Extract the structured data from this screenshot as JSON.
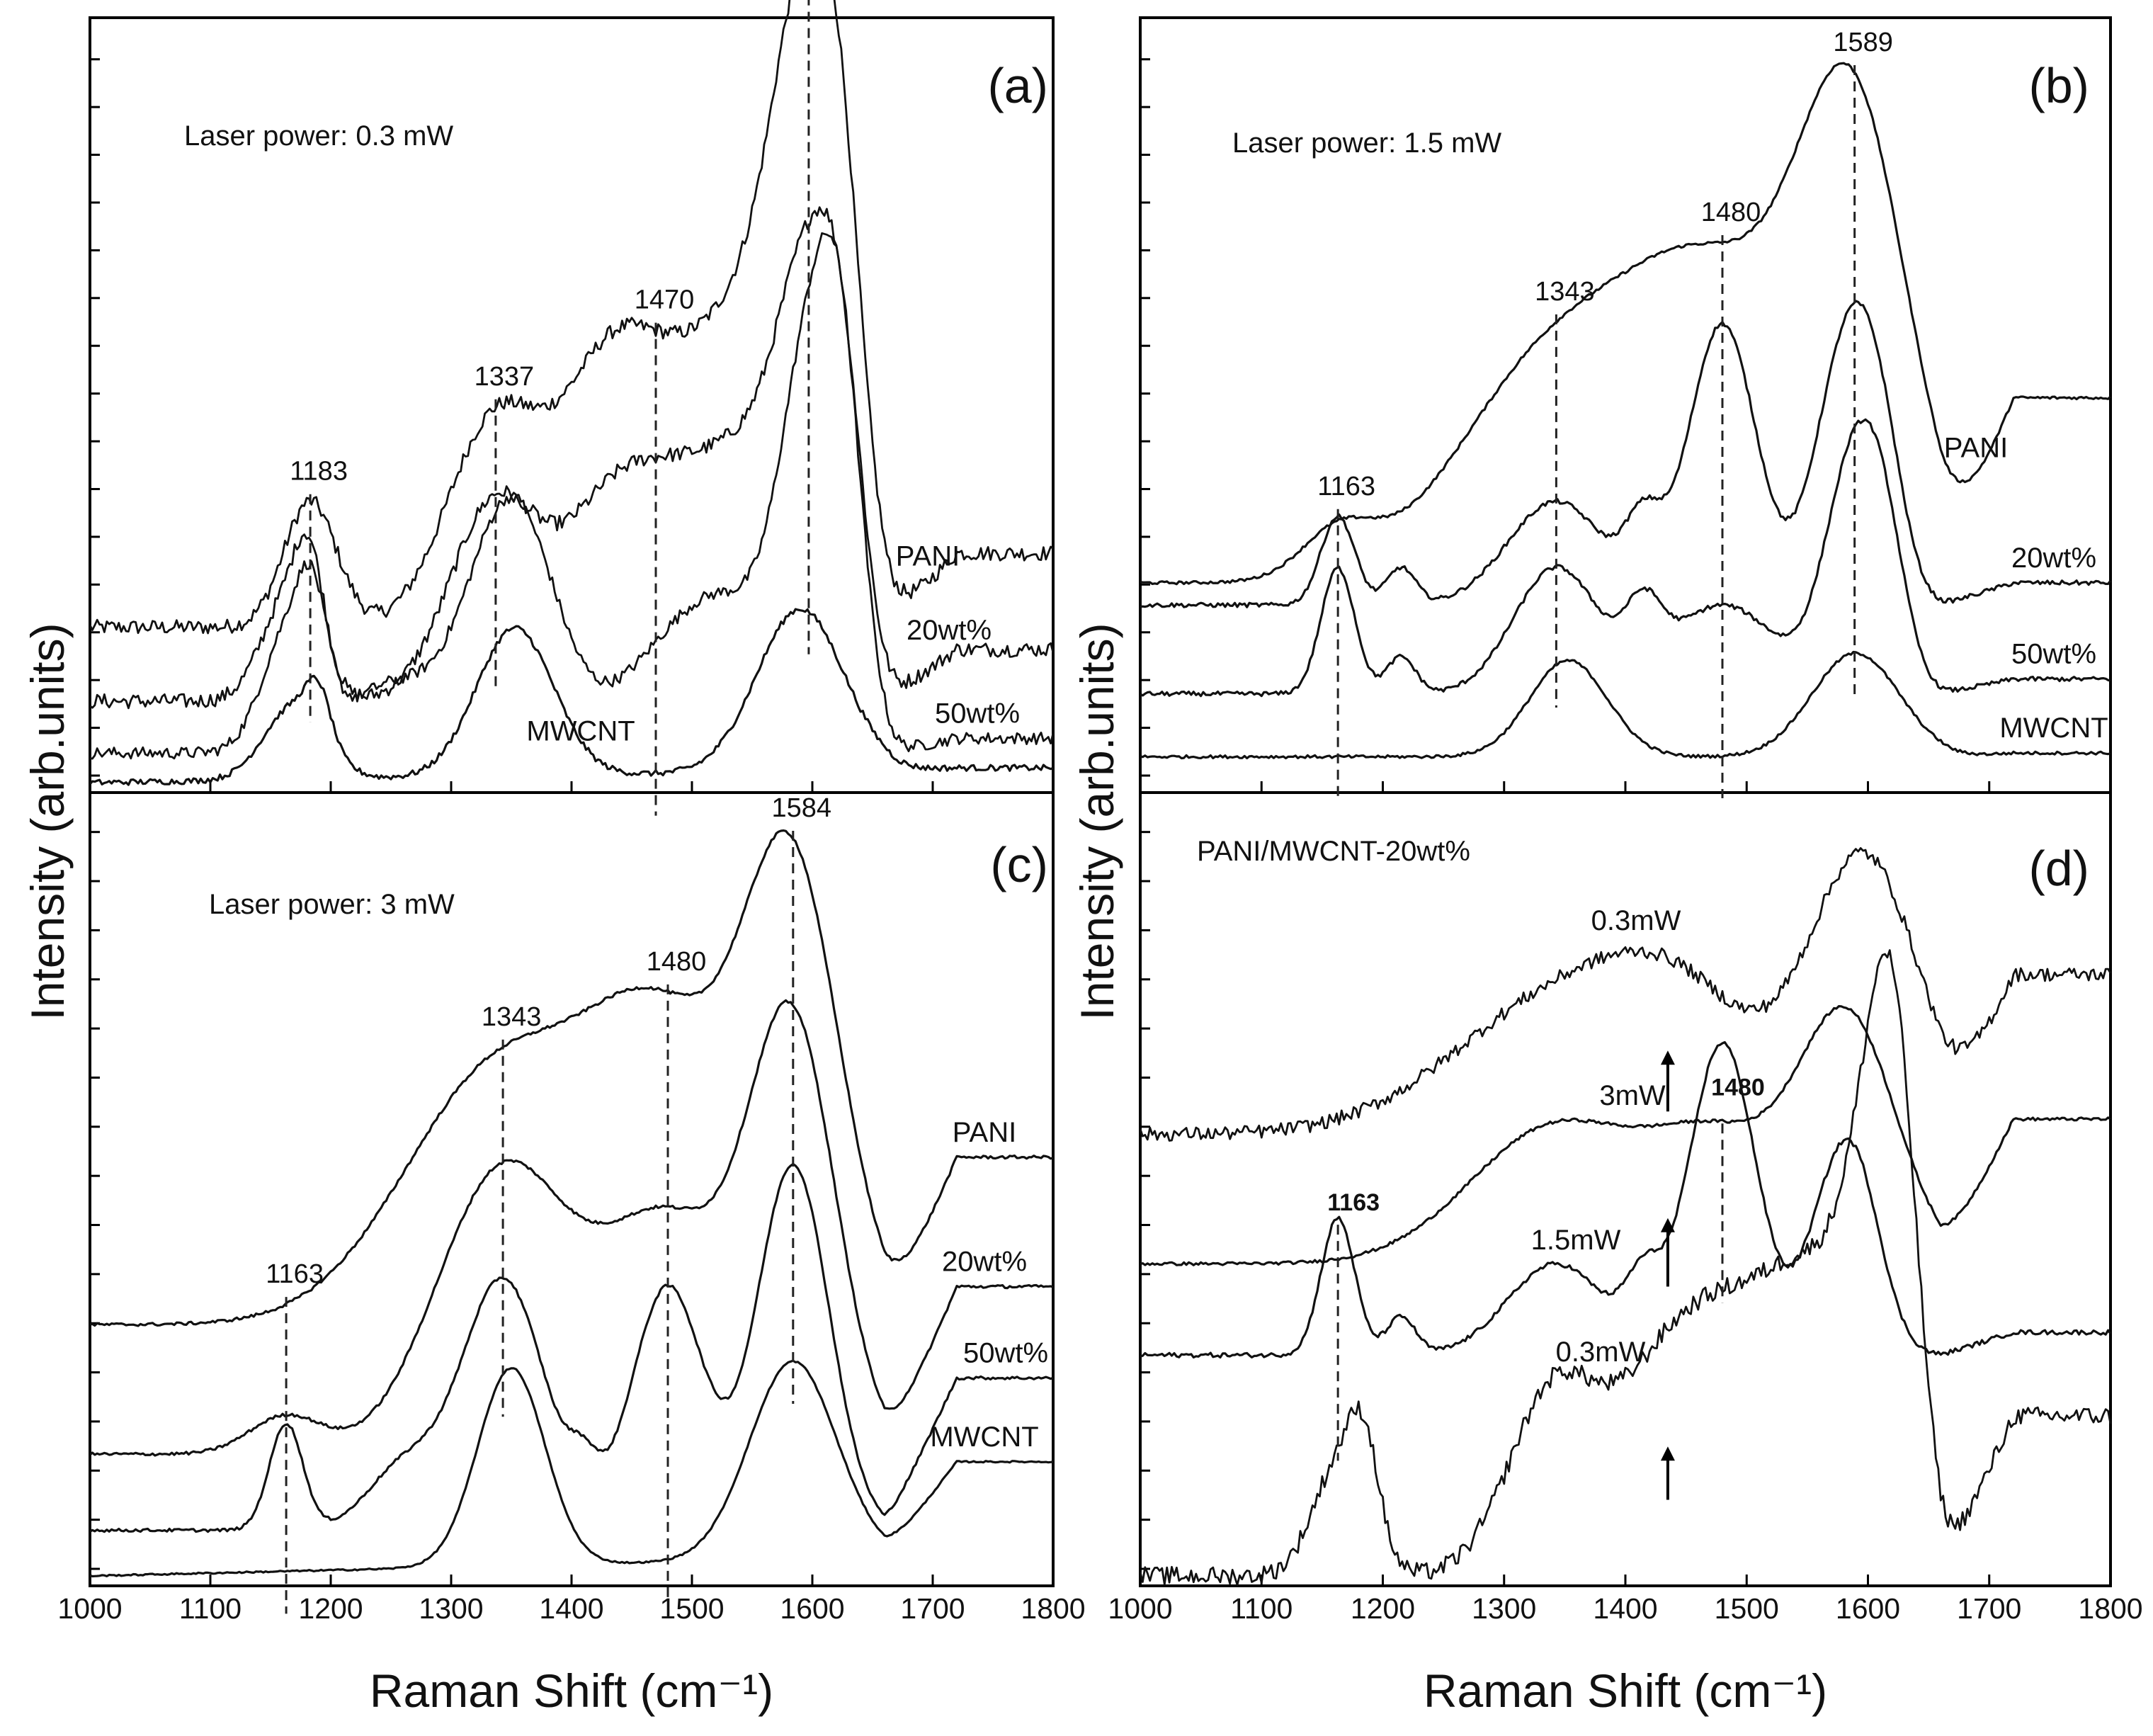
{
  "chart_data": [
    {
      "id": "a",
      "type": "line",
      "panel_label": "(a)",
      "title": "Laser power: 0.3 mW",
      "xlabel": "Raman Shift (cm⁻¹)",
      "ylabel": "Intensity (arb.units)",
      "xlim": [
        1000,
        1800
      ],
      "xticks": [
        1000,
        1100,
        1200,
        1300,
        1400,
        1500,
        1600,
        1700,
        1800
      ],
      "peaks": [
        1183,
        1337,
        1470,
        1597
      ],
      "series": [
        {
          "name": "PANI",
          "baseline": 0.21,
          "slope": 0.0,
          "noise": 0.01,
          "tail": 0.31,
          "peaks": [
            [
              1183,
              0.17,
              22
            ],
            [
              1337,
              0.28,
              40
            ],
            [
              1420,
              0.16,
              35
            ],
            [
              1470,
              0.3,
              50
            ],
            [
              1565,
              0.4,
              45
            ],
            [
              1597,
              0.52,
              26
            ],
            [
              1625,
              0.3,
              18
            ]
          ]
        },
        {
          "name": "20wt%",
          "baseline": 0.11,
          "slope": 0.0,
          "noise": 0.01,
          "tail": 0.18,
          "peaks": [
            [
              1165,
              0.14,
              22
            ],
            [
              1183,
              0.12,
              12
            ],
            [
              1337,
              0.27,
              38
            ],
            [
              1420,
              0.15,
              35
            ],
            [
              1480,
              0.26,
              45
            ],
            [
              1560,
              0.28,
              40
            ],
            [
              1597,
              0.37,
              24
            ],
            [
              1625,
              0.3,
              18
            ]
          ]
        },
        {
          "name": "50wt%",
          "baseline": 0.04,
          "slope": 0.0,
          "noise": 0.008,
          "tail": 0.06,
          "peaks": [
            [
              1165,
              0.16,
              22
            ],
            [
              1185,
              0.12,
              12
            ],
            [
              1250,
              0.09,
              40
            ],
            [
              1350,
              0.34,
              36
            ],
            [
              1480,
              0.12,
              45
            ],
            [
              1540,
              0.15,
              40
            ],
            [
              1597,
              0.46,
              24
            ],
            [
              1625,
              0.38,
              18
            ]
          ]
        },
        {
          "name": "MWCNT",
          "baseline": 0.0,
          "slope": 0.02,
          "noise": 0.004,
          "tail": 0.02,
          "peaks": [
            [
              1170,
              0.1,
              25
            ],
            [
              1190,
              0.06,
              10
            ],
            [
              1353,
              0.2,
              32
            ],
            [
              1590,
              0.22,
              36
            ]
          ]
        }
      ]
    },
    {
      "id": "b",
      "type": "line",
      "panel_label": "(b)",
      "title": "Laser power: 1.5 mW",
      "xlabel": "Raman Shift (cm⁻¹)",
      "ylabel": "Intensity (arb.units)",
      "xlim": [
        1000,
        1800
      ],
      "xticks": [
        1000,
        1100,
        1200,
        1300,
        1400,
        1500,
        1600,
        1700,
        1800
      ],
      "peaks": [
        1163,
        1343,
        1480,
        1589
      ],
      "series": [
        {
          "name": "PANI",
          "baseline": 0.27,
          "slope": 0.0,
          "noise": 0.002,
          "tail": 0.52,
          "peaks": [
            [
              1163,
              0.06,
              30
            ],
            [
              1343,
              0.3,
              80
            ],
            [
              1480,
              0.36,
              70
            ],
            [
              1589,
              0.58,
              45
            ]
          ]
        },
        {
          "name": "20wt%",
          "baseline": 0.24,
          "slope": 0.0,
          "noise": 0.003,
          "tail": 0.27,
          "peaks": [
            [
              1163,
              0.12,
              14
            ],
            [
              1215,
              0.05,
              12
            ],
            [
              1343,
              0.14,
              40
            ],
            [
              1415,
              0.09,
              15
            ],
            [
              1480,
              0.38,
              28
            ],
            [
              1560,
              0.1,
              20
            ],
            [
              1589,
              0.33,
              22
            ],
            [
              1615,
              0.12,
              18
            ]
          ]
        },
        {
          "name": "50wt%",
          "baseline": 0.12,
          "slope": 0.0,
          "noise": 0.003,
          "tail": 0.14,
          "peaks": [
            [
              1163,
              0.17,
              14
            ],
            [
              1215,
              0.05,
              12
            ],
            [
              1343,
              0.17,
              35
            ],
            [
              1415,
              0.08,
              15
            ],
            [
              1480,
              0.12,
              45
            ],
            [
              1589,
              0.31,
              24
            ],
            [
              1615,
              0.12,
              18
            ]
          ]
        },
        {
          "name": "MWCNT",
          "baseline": 0.035,
          "slope": 0.0,
          "noise": 0.002,
          "tail": 0.04,
          "peaks": [
            [
              1353,
              0.13,
              32
            ],
            [
              1590,
              0.14,
              36
            ]
          ]
        }
      ]
    },
    {
      "id": "c",
      "type": "line",
      "panel_label": "(c)",
      "title": "Laser power: 3 mW",
      "xlabel": "Raman Shift (cm⁻¹)",
      "ylabel": "Intensity (arb.units)",
      "xlim": [
        1000,
        1800
      ],
      "xticks": [
        1000,
        1100,
        1200,
        1300,
        1400,
        1500,
        1600,
        1700,
        1800
      ],
      "peaks": [
        1163,
        1343,
        1480,
        1584
      ],
      "series": [
        {
          "name": "PANI",
          "baseline": 0.33,
          "slope": 0.0,
          "noise": 0.002,
          "tail": 0.55,
          "peaks": [
            [
              1343,
              0.34,
              80
            ],
            [
              1480,
              0.34,
              60
            ],
            [
              1584,
              0.56,
              40
            ]
          ]
        },
        {
          "name": "20wt%",
          "baseline": 0.16,
          "slope": 0.0,
          "noise": 0.002,
          "tail": 0.38,
          "peaks": [
            [
              1163,
              0.05,
              30
            ],
            [
              1343,
              0.37,
              55
            ],
            [
              1480,
              0.3,
              55
            ],
            [
              1584,
              0.54,
              36
            ]
          ]
        },
        {
          "name": "50wt%",
          "baseline": 0.06,
          "slope": 0.0,
          "noise": 0.002,
          "tail": 0.26,
          "peaks": [
            [
              1163,
              0.14,
              14
            ],
            [
              1260,
              0.08,
              30
            ],
            [
              1343,
              0.33,
              35
            ],
            [
              1410,
              0.05,
              12
            ],
            [
              1480,
              0.32,
              30
            ],
            [
              1584,
              0.48,
              30
            ]
          ]
        },
        {
          "name": "MWCNT",
          "baseline": 0.0,
          "slope": 0.03,
          "noise": 0.001,
          "tail": 0.15,
          "peaks": [
            [
              1350,
              0.26,
              28
            ],
            [
              1584,
              0.26,
              36
            ]
          ]
        }
      ]
    },
    {
      "id": "d",
      "type": "line",
      "panel_label": "(d)",
      "title": "PANI/MWCNT-20wt%",
      "xlabel": "Raman Shift (cm⁻¹)",
      "ylabel": "Intensity (arb.units)",
      "xlim": [
        1000,
        1800
      ],
      "xticks": [
        1000,
        1100,
        1200,
        1300,
        1400,
        1500,
        1600,
        1700,
        1800
      ],
      "peaks": [
        1163,
        1480
      ],
      "arrows_at": [
        1435,
        1435,
        1435
      ],
      "series": [
        {
          "name": "0.3mW",
          "baseline": 0.58,
          "slope": 0.0,
          "noise": 0.009,
          "tail": 0.79,
          "peaks": [
            [
              1350,
              0.18,
              90
            ],
            [
              1450,
              0.12,
              60
            ],
            [
              1597,
              0.36,
              45
            ]
          ]
        },
        {
          "name": "3mW",
          "baseline": 0.41,
          "slope": 0.0,
          "noise": 0.002,
          "tail": 0.6,
          "peaks": [
            [
              1343,
              0.18,
              70
            ],
            [
              1480,
              0.15,
              55
            ],
            [
              1584,
              0.31,
              40
            ]
          ]
        },
        {
          "name": "1.5mW",
          "baseline": 0.29,
          "slope": 0.0,
          "noise": 0.003,
          "tail": 0.32,
          "peaks": [
            [
              1163,
              0.18,
              14
            ],
            [
              1215,
              0.05,
              12
            ],
            [
              1343,
              0.12,
              40
            ],
            [
              1415,
              0.08,
              15
            ],
            [
              1480,
              0.41,
              28
            ],
            [
              1560,
              0.1,
              20
            ],
            [
              1589,
              0.24,
              22
            ]
          ]
        },
        {
          "name": "0.3mW",
          "baseline": 0.0,
          "slope": 0.0,
          "noise": 0.012,
          "tail": 0.21,
          "peaks": [
            [
              1165,
              0.15,
              22
            ],
            [
              1185,
              0.11,
              12
            ],
            [
              1343,
              0.25,
              38
            ],
            [
              1420,
              0.14,
              35
            ],
            [
              1480,
              0.3,
              45
            ],
            [
              1560,
              0.33,
              40
            ],
            [
              1610,
              0.44,
              24
            ],
            [
              1625,
              0.3,
              18
            ]
          ]
        }
      ]
    }
  ]
}
